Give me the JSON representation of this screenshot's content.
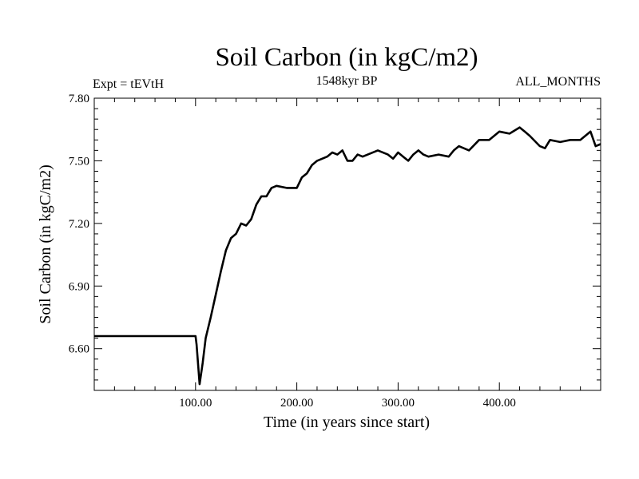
{
  "chart_data": {
    "type": "line",
    "title": "Soil Carbon (in kgC/m2)",
    "subtitle_left": "Expt = tEVtH",
    "subtitle_center": "1548kyr BP",
    "subtitle_right": "ALL_MONTHS",
    "xlabel": "Time (in years since start)",
    "ylabel": "Soil Carbon (in kgC/m2)",
    "xlim": [
      0,
      500
    ],
    "ylim": [
      6.4,
      7.8
    ],
    "xticks": [
      100,
      200,
      300,
      400
    ],
    "xtick_labels": [
      "100.00",
      "200.00",
      "300.00",
      "400.00"
    ],
    "yticks": [
      6.6,
      6.9,
      7.2,
      7.5,
      7.8
    ],
    "ytick_labels": [
      "6.60",
      "6.90",
      "7.20",
      "7.50",
      "7.80"
    ],
    "grid": false,
    "series": [
      {
        "name": "Soil Carbon",
        "x": [
          0,
          100,
          101,
          104,
          107,
          110,
          115,
          120,
          125,
          130,
          135,
          140,
          145,
          150,
          155,
          160,
          165,
          170,
          175,
          180,
          190,
          200,
          205,
          210,
          215,
          220,
          225,
          230,
          235,
          240,
          245,
          250,
          255,
          260,
          265,
          270,
          280,
          290,
          295,
          300,
          305,
          310,
          315,
          320,
          325,
          330,
          340,
          350,
          355,
          360,
          370,
          380,
          390,
          400,
          410,
          420,
          425,
          430,
          440,
          445,
          450,
          460,
          470,
          480,
          490,
          495,
          500
        ],
        "y": [
          6.66,
          6.66,
          6.62,
          6.43,
          6.53,
          6.65,
          6.75,
          6.86,
          6.97,
          7.07,
          7.13,
          7.15,
          7.2,
          7.19,
          7.22,
          7.29,
          7.33,
          7.33,
          7.37,
          7.38,
          7.37,
          7.37,
          7.42,
          7.44,
          7.48,
          7.5,
          7.51,
          7.52,
          7.54,
          7.53,
          7.55,
          7.5,
          7.5,
          7.53,
          7.52,
          7.53,
          7.55,
          7.53,
          7.51,
          7.54,
          7.52,
          7.5,
          7.53,
          7.55,
          7.53,
          7.52,
          7.53,
          7.52,
          7.55,
          7.57,
          7.55,
          7.6,
          7.6,
          7.64,
          7.63,
          7.66,
          7.64,
          7.62,
          7.57,
          7.56,
          7.6,
          7.59,
          7.6,
          7.6,
          7.64,
          7.57,
          7.58
        ]
      }
    ]
  }
}
